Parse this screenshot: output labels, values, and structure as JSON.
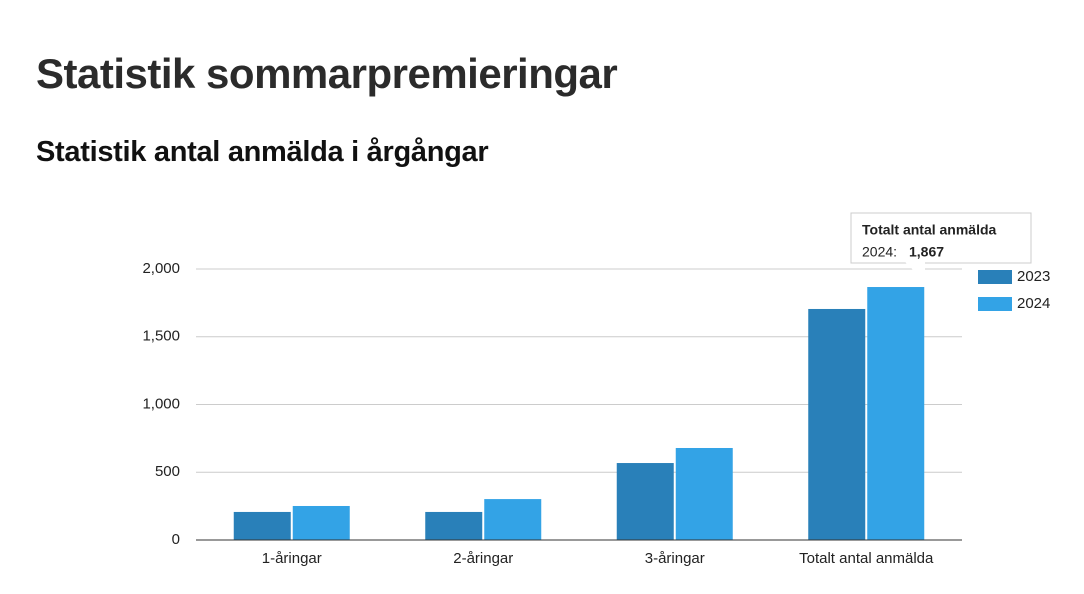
{
  "header": {
    "title": "Statistik sommarpremieringar",
    "subtitle": "Statistik antal anmälda i årgångar"
  },
  "chart_data": {
    "type": "bar",
    "categories": [
      "1-åringar",
      "2-åringar",
      "3-åringar",
      "Totalt antal anmälda"
    ],
    "series": [
      {
        "name": "2023",
        "color": "#2980b9",
        "values": [
          207,
          207,
          568,
          1705
        ]
      },
      {
        "name": "2024",
        "color": "#33a3e6",
        "values": [
          251,
          302,
          679,
          1867
        ]
      }
    ],
    "ylim": [
      0,
      2000
    ],
    "yticks": [
      0,
      500,
      {
        "value": 1000,
        "label": "1,000"
      },
      {
        "value": 1500,
        "label": "1,500"
      },
      {
        "value": 2000,
        "label": "2,000"
      }
    ],
    "grid": true,
    "legend": "right",
    "tooltip": {
      "title": "Totalt antal anmälda",
      "label": "2024:",
      "value": 1867,
      "value_label": "1,867"
    }
  }
}
